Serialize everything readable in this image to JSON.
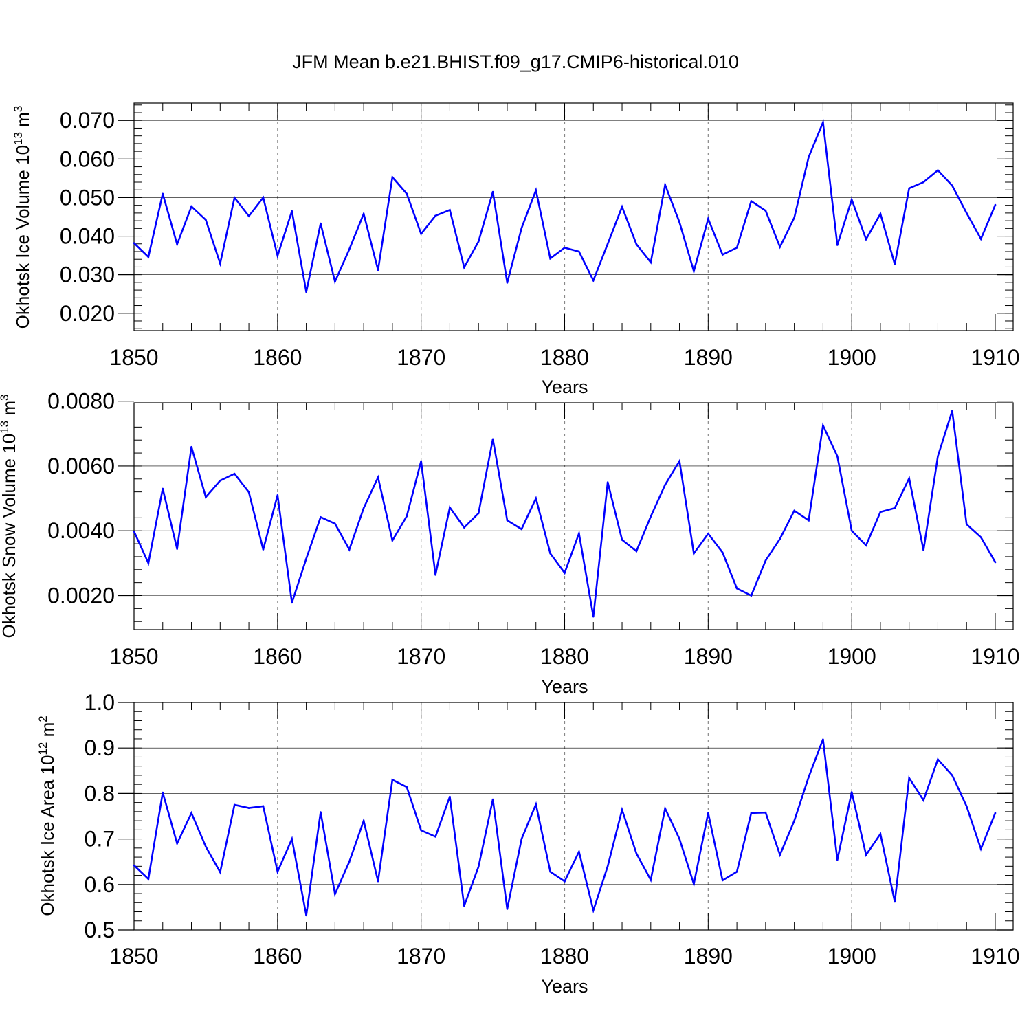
{
  "chart_data": {
    "title": "JFM Mean b.e21.BHIST.f09_g17.CMIP6-historical.010",
    "type": "line",
    "line_color": "#0000ff",
    "x": [
      1850,
      1851,
      1852,
      1853,
      1854,
      1855,
      1856,
      1857,
      1858,
      1859,
      1860,
      1861,
      1862,
      1863,
      1864,
      1865,
      1866,
      1867,
      1868,
      1869,
      1870,
      1871,
      1872,
      1873,
      1874,
      1875,
      1876,
      1877,
      1878,
      1879,
      1880,
      1881,
      1882,
      1883,
      1884,
      1885,
      1886,
      1887,
      1888,
      1889,
      1890,
      1891,
      1892,
      1893,
      1894,
      1895,
      1896,
      1897,
      1898,
      1899,
      1900,
      1901,
      1902,
      1903,
      1904,
      1905,
      1906,
      1907,
      1908,
      1909,
      1910
    ],
    "panels": [
      {
        "ylabel": "Okhotsk Ice Volume 10",
        "ylabel_exp": "13",
        "ylabel_unit": " m",
        "ylabel_unit_exp": "3",
        "xlabel": "Years",
        "xlim": [
          1850,
          1910
        ],
        "ylim": [
          0.0155,
          0.0745
        ],
        "yticks": [
          0.02,
          0.03,
          0.04,
          0.05,
          0.06,
          0.07
        ],
        "ytick_labels": [
          "0.020",
          "0.030",
          "0.040",
          "0.050",
          "0.060",
          "0.070"
        ],
        "xticks": [
          1850,
          1860,
          1870,
          1880,
          1890,
          1900,
          1910
        ],
        "xtick_labels": [
          "1850",
          "1860",
          "1870",
          "1880",
          "1890",
          "1900",
          "1910"
        ],
        "values": [
          0.0382,
          0.0346,
          0.051,
          0.0379,
          0.0477,
          0.0442,
          0.0329,
          0.05,
          0.0452,
          0.05,
          0.0349,
          0.0465,
          0.0255,
          0.0433,
          0.0282,
          0.0366,
          0.0458,
          0.0312,
          0.0553,
          0.051,
          0.0406,
          0.0453,
          0.0468,
          0.0319,
          0.0386,
          0.0515,
          0.0279,
          0.0421,
          0.0519,
          0.0342,
          0.037,
          0.036,
          0.0285,
          0.038,
          0.0476,
          0.0379,
          0.0332,
          0.0533,
          0.0436,
          0.0309,
          0.0445,
          0.0352,
          0.037,
          0.0491,
          0.0466,
          0.0372,
          0.0448,
          0.0605,
          0.0695,
          0.0377,
          0.0495,
          0.0392,
          0.0458,
          0.0327,
          0.0524,
          0.054,
          0.0571,
          0.0531,
          0.046,
          0.0393,
          0.0481
        ]
      },
      {
        "ylabel": "Okhotsk Snow Volume 10",
        "ylabel_exp": "13",
        "ylabel_unit": " m",
        "ylabel_unit_exp": "3",
        "xlabel": "Years",
        "xlim": [
          1850,
          1910
        ],
        "ylim": [
          0.00095,
          0.00795
        ],
        "yticks": [
          0.002,
          0.004,
          0.006,
          0.008
        ],
        "ytick_labels": [
          "0.0020",
          "0.0040",
          "0.0060",
          "0.0080"
        ],
        "xticks": [
          1850,
          1860,
          1870,
          1880,
          1890,
          1900,
          1910
        ],
        "xtick_labels": [
          "1850",
          "1860",
          "1870",
          "1880",
          "1890",
          "1900",
          "1910"
        ],
        "values": [
          0.00398,
          0.003,
          0.0053,
          0.00344,
          0.00659,
          0.00504,
          0.00555,
          0.00576,
          0.00519,
          0.00342,
          0.0051,
          0.00178,
          0.00314,
          0.00442,
          0.00422,
          0.00342,
          0.0047,
          0.00565,
          0.0037,
          0.00445,
          0.00615,
          0.00264,
          0.00472,
          0.0041,
          0.00454,
          0.00683,
          0.00432,
          0.00405,
          0.005,
          0.0033,
          0.0027,
          0.00392,
          0.00135,
          0.0055,
          0.00372,
          0.00337,
          0.00444,
          0.00542,
          0.00615,
          0.0033,
          0.00391,
          0.00333,
          0.00222,
          0.002,
          0.00308,
          0.00375,
          0.00462,
          0.00432,
          0.00725,
          0.0063,
          0.004,
          0.00355,
          0.00458,
          0.0047,
          0.00562,
          0.0034,
          0.0063,
          0.0077,
          0.0042,
          0.0038,
          0.00303
        ]
      },
      {
        "ylabel": "Okhotsk Ice Area 10",
        "ylabel_exp": "12",
        "ylabel_unit": " m",
        "ylabel_unit_exp": "2",
        "xlabel": "Years",
        "xlim": [
          1850,
          1910
        ],
        "ylim": [
          0.5,
          1.0
        ],
        "yticks": [
          0.5,
          0.6,
          0.7,
          0.8,
          0.9,
          1.0
        ],
        "ytick_labels": [
          "0.5",
          "0.6",
          "0.7",
          "0.8",
          "0.9",
          "1.0"
        ],
        "xticks": [
          1850,
          1860,
          1870,
          1880,
          1890,
          1900,
          1910
        ],
        "xtick_labels": [
          "1850",
          "1860",
          "1870",
          "1880",
          "1890",
          "1900",
          "1910"
        ],
        "values": [
          0.642,
          0.612,
          0.802,
          0.69,
          0.757,
          0.683,
          0.627,
          0.775,
          0.768,
          0.772,
          0.628,
          0.7,
          0.532,
          0.759,
          0.579,
          0.65,
          0.74,
          0.607,
          0.83,
          0.814,
          0.719,
          0.705,
          0.793,
          0.553,
          0.639,
          0.787,
          0.546,
          0.7,
          0.776,
          0.628,
          0.607,
          0.672,
          0.543,
          0.64,
          0.764,
          0.668,
          0.61,
          0.767,
          0.7,
          0.601,
          0.757,
          0.609,
          0.628,
          0.757,
          0.758,
          0.665,
          0.74,
          0.836,
          0.919,
          0.654,
          0.803,
          0.665,
          0.711,
          0.562,
          0.834,
          0.785,
          0.875,
          0.84,
          0.772,
          0.678,
          0.757
        ]
      }
    ]
  }
}
